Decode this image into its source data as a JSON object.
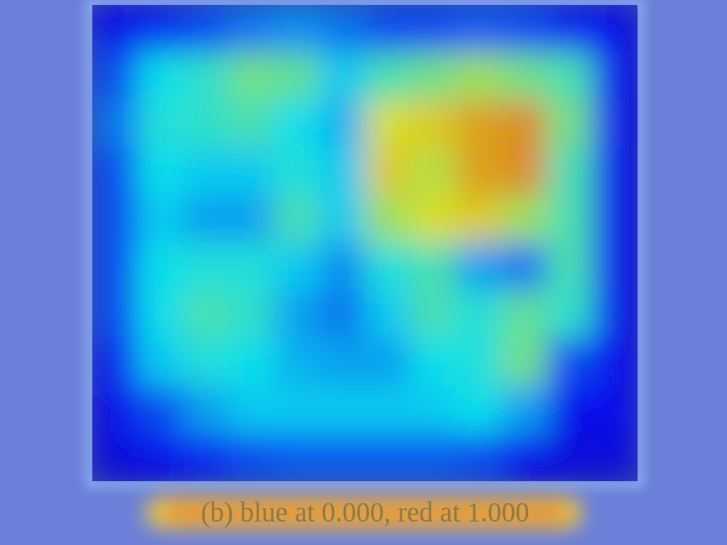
{
  "chart_data": {
    "type": "heatmap",
    "title": "(b) blue at 0.000, red at 1.000",
    "color_range": [
      0,
      1
    ],
    "tick_labels": false,
    "cells": [
      [
        0.12,
        0.15,
        0.2,
        0.25,
        0.28,
        0.25,
        0.2,
        0.2,
        0.22,
        0.2,
        0.15,
        0.12
      ],
      [
        0.2,
        0.38,
        0.42,
        0.5,
        0.48,
        0.35,
        0.45,
        0.5,
        0.55,
        0.5,
        0.45,
        0.12
      ],
      [
        0.25,
        0.4,
        0.42,
        0.45,
        0.38,
        0.32,
        0.62,
        0.65,
        0.7,
        0.72,
        0.5,
        0.12
      ],
      [
        0.2,
        0.38,
        0.35,
        0.35,
        0.4,
        0.35,
        0.65,
        0.58,
        0.7,
        0.72,
        0.45,
        0.12
      ],
      [
        0.2,
        0.35,
        0.3,
        0.3,
        0.45,
        0.35,
        0.55,
        0.62,
        0.65,
        0.55,
        0.45,
        0.12
      ],
      [
        0.2,
        0.38,
        0.4,
        0.4,
        0.35,
        0.28,
        0.4,
        0.45,
        0.3,
        0.25,
        0.45,
        0.12
      ],
      [
        0.2,
        0.38,
        0.45,
        0.42,
        0.3,
        0.25,
        0.35,
        0.45,
        0.4,
        0.48,
        0.42,
        0.12
      ],
      [
        0.15,
        0.35,
        0.4,
        0.38,
        0.32,
        0.3,
        0.3,
        0.38,
        0.4,
        0.5,
        0.2,
        0.12
      ],
      [
        0.12,
        0.2,
        0.3,
        0.35,
        0.35,
        0.35,
        0.35,
        0.35,
        0.38,
        0.3,
        0.12,
        0.12
      ],
      [
        0.1,
        0.12,
        0.15,
        0.2,
        0.22,
        0.22,
        0.22,
        0.22,
        0.2,
        0.12,
        0.1,
        0.1
      ]
    ]
  }
}
